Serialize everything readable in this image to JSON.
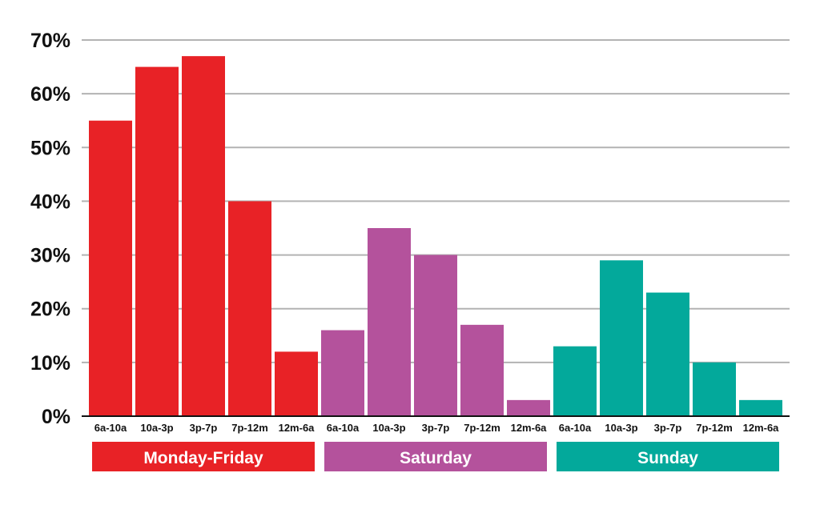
{
  "chart_data": {
    "type": "bar",
    "title": "",
    "xlabel": "",
    "ylabel": "",
    "ylim": [
      0,
      70
    ],
    "y_ticks": [
      "0%",
      "10%",
      "20%",
      "30%",
      "40%",
      "50%",
      "60%",
      "70%"
    ],
    "grid": true,
    "categories": [
      "6a-10a",
      "10a-3p",
      "3p-7p",
      "7p-12m",
      "12m-6a"
    ],
    "groups": [
      {
        "name": "Monday-Friday",
        "color": "#e82226",
        "values": [
          55,
          65,
          67,
          40,
          12
        ]
      },
      {
        "name": "Saturday",
        "color": "#b4529c",
        "values": [
          16,
          35,
          30,
          17,
          3
        ]
      },
      {
        "name": "Sunday",
        "color": "#03a99b",
        "values": [
          13,
          29,
          23,
          10,
          3
        ]
      }
    ]
  }
}
